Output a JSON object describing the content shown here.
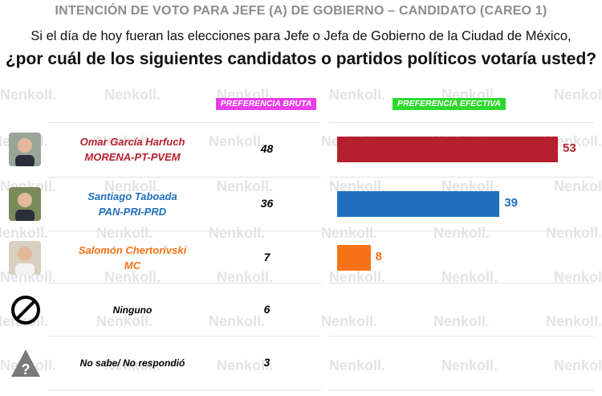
{
  "header": {
    "title": "INTENCIÓN DE VOTO PARA JEFE (A) DE GOBIERNO – CANDIDATO (CAREO 1)",
    "question_line1": "Si el día de hoy fueran las elecciones para Jefe o Jefa de Gobierno de la Ciudad de México,",
    "question_line2": "¿por cuál de los siguientes candidatos o partidos políticos votaría usted?"
  },
  "columns": {
    "bruta": "PREFERENCIA BRUTA",
    "efectiva": "PREFERENCIA EFECTIVA"
  },
  "watermark": "enkoll.",
  "chart_data": {
    "type": "bar",
    "orientation": "horizontal",
    "categories": [
      "Omar García Harfuch MORENA-PT-PVEM",
      "Santiago Taboada PAN-PRI-PRD",
      "Salomón Chertorivski MC",
      "Ninguno",
      "No sabe/ No respondió"
    ],
    "series": [
      {
        "name": "PREFERENCIA BRUTA",
        "values": [
          48,
          36,
          7,
          6,
          3
        ]
      },
      {
        "name": "PREFERENCIA EFECTIVA",
        "values": [
          53,
          39,
          8,
          null,
          null
        ]
      }
    ],
    "colors": [
      "#b5202e",
      "#1f6fbd",
      "#f57216"
    ]
  },
  "rows": [
    {
      "name": "Omar García Harfuch",
      "party": "MORENA-PT-PVEM",
      "bruta": "48",
      "efectiva": "53",
      "color": "#b5202e",
      "avatar": "photo"
    },
    {
      "name": "Santiago Taboada",
      "party": "PAN-PRI-PRD",
      "bruta": "36",
      "efectiva": "39",
      "color": "#1f6fbd",
      "avatar": "photo"
    },
    {
      "name": "Salomón Chertorivski",
      "party": "MC",
      "bruta": "7",
      "efectiva": "8",
      "color": "#f57216",
      "avatar": "photo"
    },
    {
      "name": "Ninguno",
      "party": "",
      "bruta": "6",
      "efectiva": "",
      "color": "#000000",
      "avatar": "no-icon"
    },
    {
      "name": "No sabe/ No respondió",
      "party": "",
      "bruta": "3",
      "efectiva": "",
      "color": "#000000",
      "avatar": "question-icon"
    }
  ]
}
